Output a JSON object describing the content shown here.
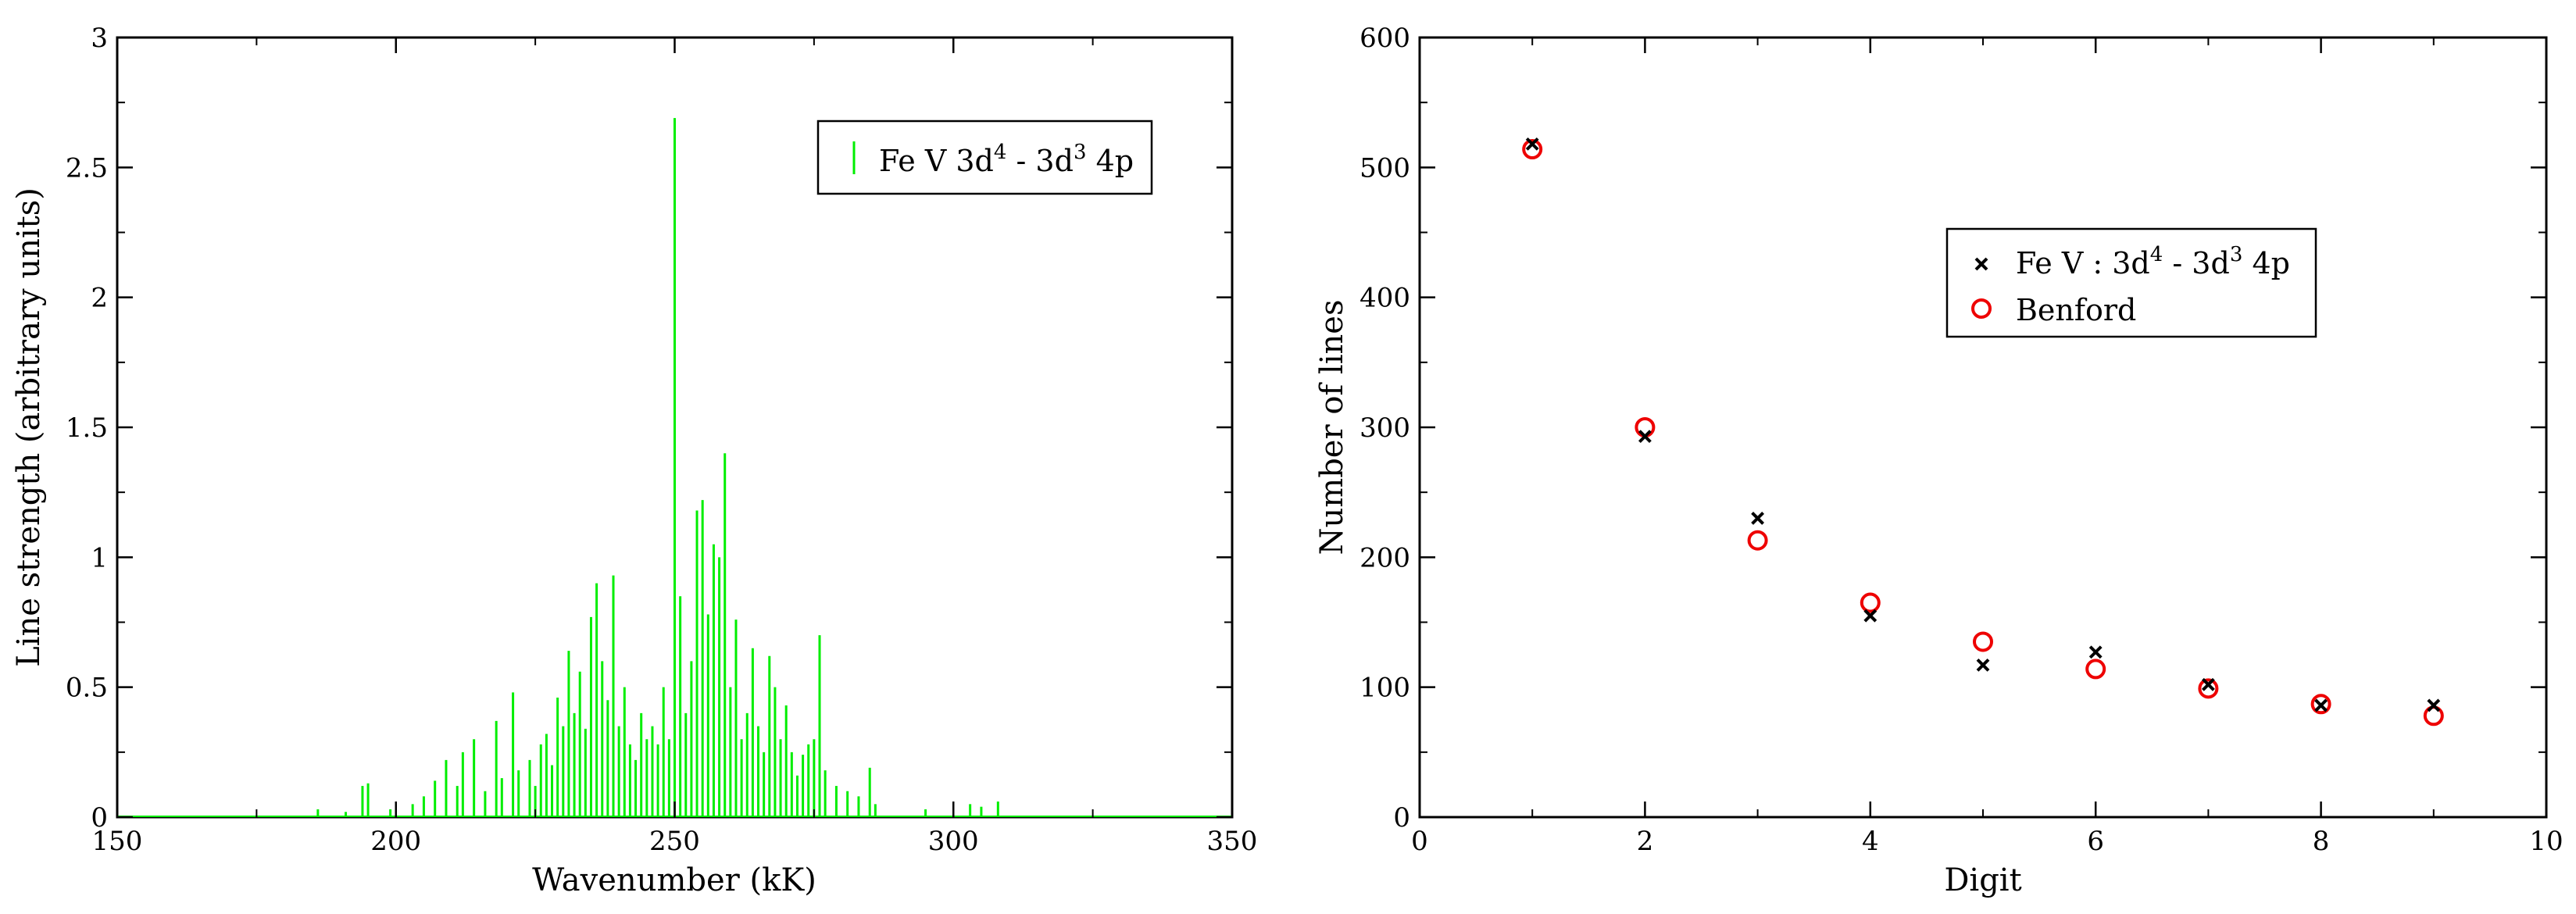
{
  "chart_data": [
    {
      "type": "bar",
      "xlabel": "Wavenumber (kK)",
      "ylabel": "Line strength (arbitrary units)",
      "xlim": [
        150,
        350
      ],
      "ylim": [
        0,
        3
      ],
      "xticks": [
        150,
        200,
        250,
        300,
        350
      ],
      "yticks": [
        0,
        0.5,
        1,
        1.5,
        2,
        2.5,
        3
      ],
      "ytick_labels": [
        "0",
        "0.5",
        "1",
        "1.5",
        "2",
        "2.5",
        "3"
      ],
      "grid": false,
      "legend_position": "top-right",
      "color": "#00ee00",
      "series": [
        {
          "name": "Fe V 3d4 - 3d3 4p",
          "legend": {
            "base1": "Fe V 3d",
            "sup1": "4",
            "mid": " - 3d",
            "sup2": "3",
            "tail": " 4p"
          },
          "x": [
            186,
            191,
            194,
            195,
            199,
            203,
            205,
            207,
            209,
            211,
            212,
            214,
            216,
            218,
            219,
            221,
            222,
            224,
            225,
            226,
            227,
            228,
            229,
            230,
            231,
            232,
            233,
            234,
            235,
            236,
            237,
            238,
            239,
            240,
            241,
            242,
            243,
            244,
            245,
            246,
            247,
            248,
            249,
            250,
            251,
            252,
            253,
            254,
            255,
            256,
            257,
            258,
            259,
            260,
            261,
            262,
            263,
            264,
            265,
            266,
            267,
            268,
            269,
            270,
            271,
            272,
            273,
            274,
            275,
            276,
            277,
            279,
            281,
            283,
            285,
            286,
            295,
            303,
            305,
            308
          ],
          "values": [
            0.03,
            0.02,
            0.12,
            0.13,
            0.03,
            0.05,
            0.08,
            0.14,
            0.22,
            0.12,
            0.25,
            0.3,
            0.1,
            0.37,
            0.15,
            0.48,
            0.18,
            0.22,
            0.12,
            0.28,
            0.32,
            0.2,
            0.46,
            0.35,
            0.64,
            0.4,
            0.56,
            0.34,
            0.77,
            0.9,
            0.6,
            0.45,
            0.93,
            0.35,
            0.5,
            0.28,
            0.22,
            0.4,
            0.3,
            0.35,
            0.28,
            0.5,
            0.3,
            2.69,
            0.85,
            0.4,
            0.6,
            1.18,
            1.22,
            0.78,
            1.05,
            1.0,
            1.4,
            0.5,
            0.76,
            0.3,
            0.4,
            0.65,
            0.35,
            0.25,
            0.62,
            0.5,
            0.3,
            0.43,
            0.25,
            0.16,
            0.24,
            0.28,
            0.3,
            0.7,
            0.18,
            0.12,
            0.1,
            0.08,
            0.19,
            0.05,
            0.03,
            0.05,
            0.04,
            0.06
          ]
        }
      ]
    },
    {
      "type": "scatter",
      "xlabel": "Digit",
      "ylabel": "Number of lines",
      "xlim": [
        0,
        10
      ],
      "ylim": [
        0,
        600
      ],
      "xticks": [
        0,
        2,
        4,
        6,
        8,
        10
      ],
      "yticks": [
        0,
        100,
        200,
        300,
        400,
        500,
        600
      ],
      "ytick_labels": [
        "0",
        "100",
        "200",
        "300",
        "400",
        "500",
        "600"
      ],
      "grid": false,
      "legend_position": "upper-center-right",
      "series": [
        {
          "name": "Fe V : 3d4 - 3d3 4p",
          "legend": {
            "base1": "Fe V : 3d",
            "sup1": "4",
            "mid": " - 3d",
            "sup2": "3",
            "tail": " 4p"
          },
          "marker": "x",
          "color": "#000000",
          "x": [
            1,
            2,
            3,
            4,
            5,
            6,
            7,
            8,
            9
          ],
          "y": [
            518,
            293,
            230,
            155,
            117,
            127,
            102,
            86,
            86
          ]
        },
        {
          "name": "Benford",
          "legend": {
            "base1": "Benford",
            "sup1": "",
            "mid": "",
            "sup2": "",
            "tail": ""
          },
          "marker": "circle",
          "color": "#ee0000",
          "x": [
            1,
            2,
            3,
            4,
            5,
            6,
            7,
            8,
            9
          ],
          "y": [
            514,
            300,
            213,
            165,
            135,
            114,
            99,
            87,
            78
          ]
        }
      ]
    }
  ]
}
